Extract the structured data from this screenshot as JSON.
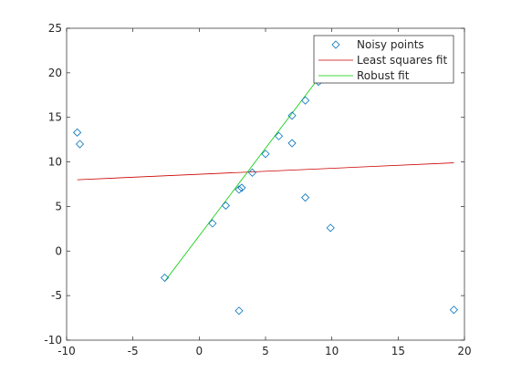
{
  "chart_data": {
    "type": "scatter",
    "title": "",
    "xlabel": "",
    "ylabel": "",
    "xlim": [
      -10,
      20
    ],
    "ylim": [
      -10,
      25
    ],
    "xticks": [
      -10,
      -5,
      0,
      5,
      10,
      15,
      20
    ],
    "yticks": [
      -10,
      -5,
      0,
      5,
      10,
      15,
      20,
      25
    ],
    "grid": false,
    "legend_position": "top-right",
    "series": [
      {
        "name": "Noisy points",
        "kind": "scatter",
        "marker": "diamond",
        "color": "#0072bd",
        "points": [
          [
            -9.2,
            13.3
          ],
          [
            -9.0,
            12.0
          ],
          [
            -2.6,
            -3.0
          ],
          [
            1.0,
            3.1
          ],
          [
            2.0,
            5.1
          ],
          [
            3.0,
            6.9
          ],
          [
            3.2,
            7.1
          ],
          [
            3.0,
            -6.7
          ],
          [
            4.0,
            8.8
          ],
          [
            5.0,
            10.9
          ],
          [
            6.0,
            12.9
          ],
          [
            7.0,
            15.2
          ],
          [
            7.0,
            12.1
          ],
          [
            8.0,
            16.9
          ],
          [
            8.0,
            6.0
          ],
          [
            9.0,
            19.0
          ],
          [
            9.9,
            2.6
          ],
          [
            19.2,
            -6.6
          ]
        ]
      },
      {
        "name": "Least squares fit",
        "kind": "line",
        "color": "#cc0000",
        "points": [
          [
            -9.2,
            8.0
          ],
          [
            19.2,
            9.9
          ]
        ]
      },
      {
        "name": "Robust fit",
        "kind": "line",
        "color": "#00cc00",
        "points": [
          [
            -2.6,
            -3.4
          ],
          [
            9.0,
            19.4
          ]
        ]
      }
    ]
  }
}
